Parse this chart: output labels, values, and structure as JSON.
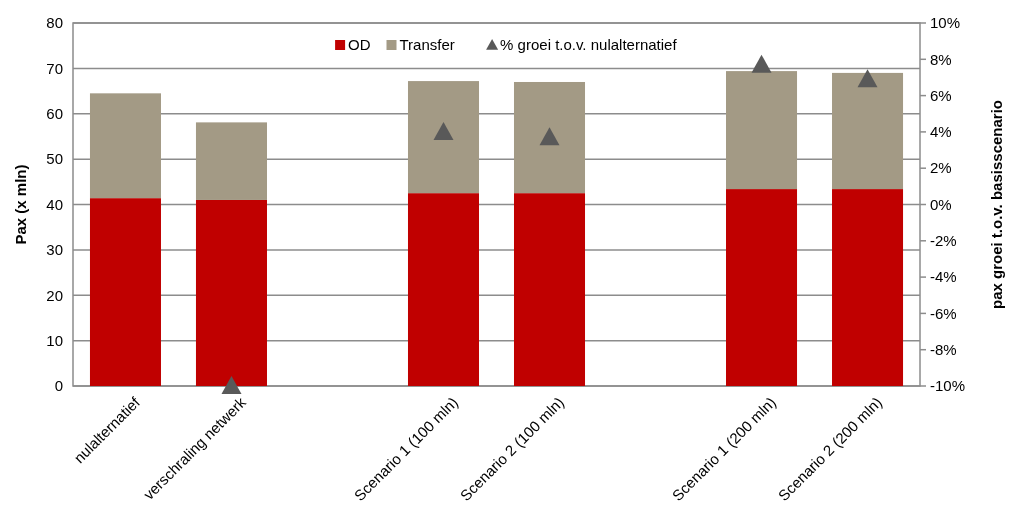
{
  "chart_data": {
    "type": "bar",
    "stacked": true,
    "ylabel": "Pax (x mln)",
    "y2label": "pax groei t.o.v. basisscenario",
    "categories": [
      "nulalternatief",
      "verschraling netwerk",
      null,
      "Scenario 1 (100 mln)",
      "Scenario 2 (100 mln)",
      null,
      "Scenario 1 (200 mln)",
      "Scenario 2 (200 mln)"
    ],
    "series": [
      {
        "name": "OD",
        "color": "#c00000",
        "values": [
          41.4,
          41.0,
          null,
          42.5,
          42.5,
          null,
          43.4,
          43.4
        ]
      },
      {
        "name": "Transfer",
        "color": "#a39a85",
        "values": [
          23.1,
          17.1,
          null,
          24.7,
          24.5,
          null,
          26.0,
          25.6
        ]
      },
      {
        "name": "% groei t.o.v. nulalternatief",
        "type": "scatter",
        "axis": "y2",
        "marker": "triangle",
        "color": "#595959",
        "values": [
          null,
          -10,
          null,
          4.0,
          3.7,
          null,
          7.7,
          6.9
        ]
      }
    ],
    "ylim": [
      0,
      80
    ],
    "yticks": [
      0,
      10,
      20,
      30,
      40,
      50,
      60,
      70,
      80
    ],
    "y2lim": [
      -10,
      10
    ],
    "y2ticks": [
      {
        "value": -10,
        "label": "-10%"
      },
      {
        "value": -8,
        "label": "-8%"
      },
      {
        "value": -6,
        "label": "-6%"
      },
      {
        "value": -4,
        "label": "-4%"
      },
      {
        "value": -2,
        "label": "-2%"
      },
      {
        "value": 0,
        "label": "0%"
      },
      {
        "value": 2,
        "label": "2%"
      },
      {
        "value": 4,
        "label": "4%"
      },
      {
        "value": 6,
        "label": "6%"
      },
      {
        "value": 8,
        "label": "8%"
      },
      {
        "value": 10,
        "label": "10%"
      }
    ],
    "grid": "y",
    "legend": "top"
  }
}
